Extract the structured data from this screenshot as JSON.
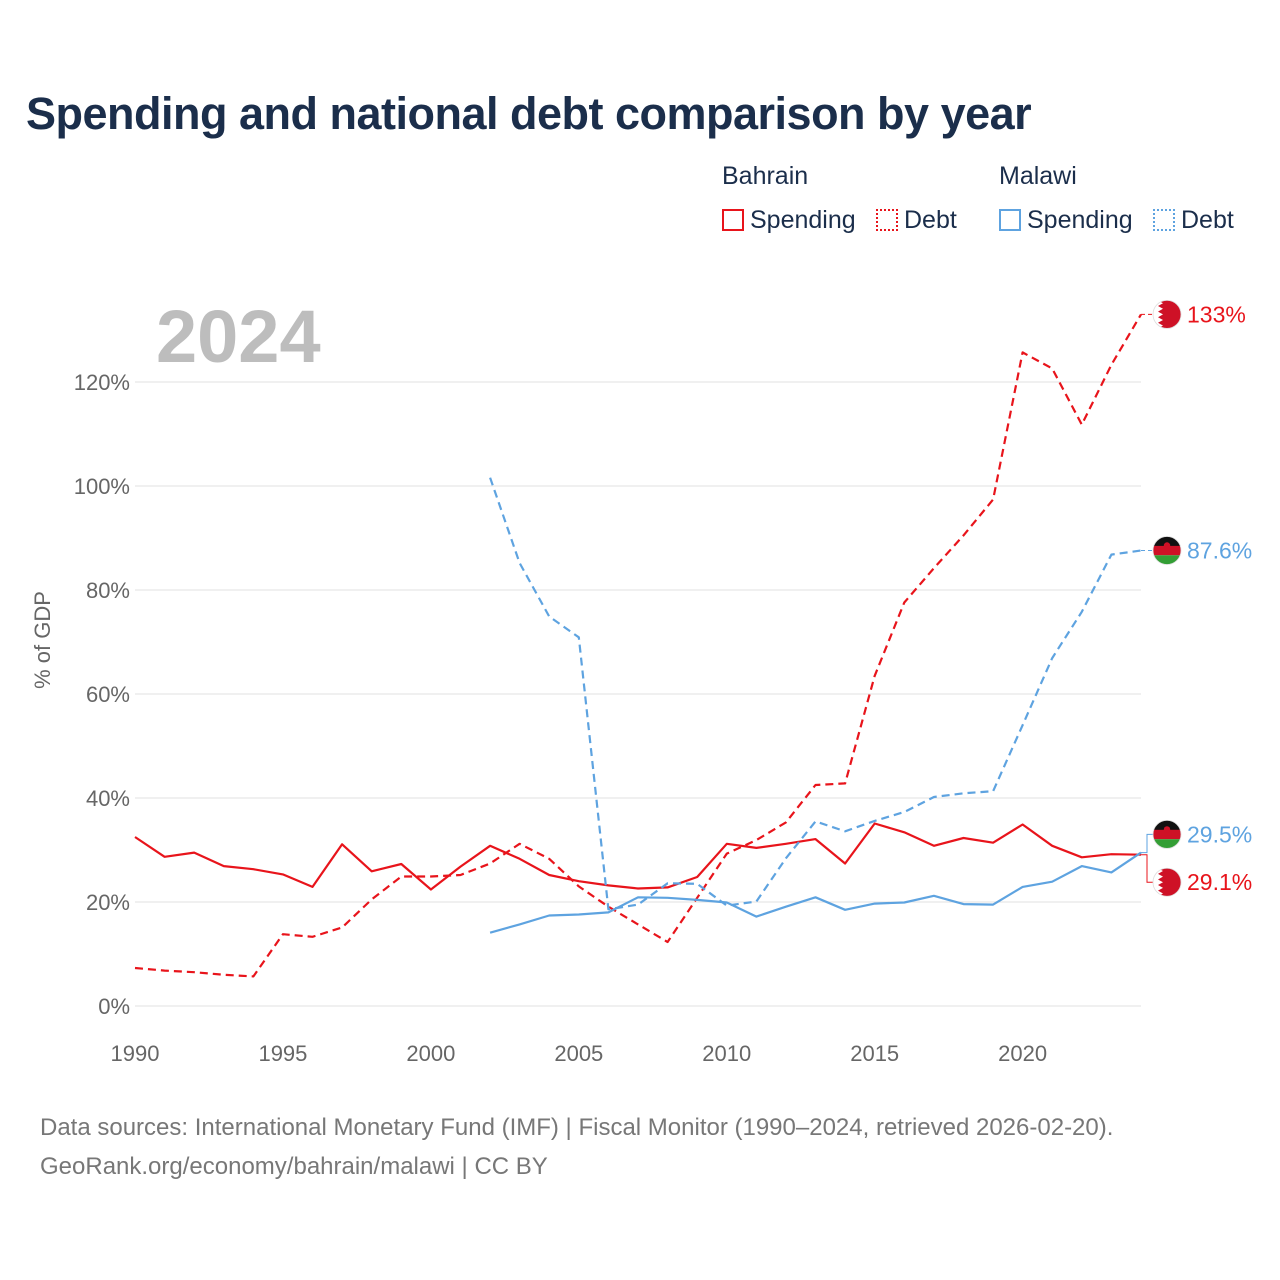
{
  "title": "Spending and national debt comparison by year",
  "legend": {
    "bahrain": {
      "label": "Bahrain",
      "spending": "Spending",
      "debt": "Debt",
      "color": "#e8141b"
    },
    "malawi": {
      "label": "Malawi",
      "spending": "Spending",
      "debt": "Debt",
      "color": "#5ea3e0"
    }
  },
  "footer": {
    "line1": "Data sources: International Monetary Fund (IMF) | Fiscal Monitor (1990–2024, retrieved 2026-02-20).",
    "line2": "GeoRank.org/economy/bahrain/malawi | CC BY"
  },
  "chart_data": {
    "type": "line",
    "year_watermark": "2024",
    "ylabel": "% of GDP",
    "xlim": [
      1990,
      2024
    ],
    "ylim": [
      0,
      130
    ],
    "xticks": [
      {
        "value": 1990,
        "label": "1990"
      },
      {
        "value": 1995,
        "label": "1995"
      },
      {
        "value": 2000,
        "label": "2000"
      },
      {
        "value": 2005,
        "label": "2005"
      },
      {
        "value": 2010,
        "label": "2010"
      },
      {
        "value": 2015,
        "label": "2015"
      },
      {
        "value": 2020,
        "label": "2020"
      }
    ],
    "yticks": [
      {
        "value": 0,
        "label": "0%"
      },
      {
        "value": 20,
        "label": "20%"
      },
      {
        "value": 40,
        "label": "40%"
      },
      {
        "value": 60,
        "label": "60%"
      },
      {
        "value": 80,
        "label": "80%"
      },
      {
        "value": 100,
        "label": "100%"
      },
      {
        "value": 120,
        "label": "120%"
      }
    ],
    "series": [
      {
        "name": "Bahrain Spending",
        "country": "bahrain",
        "kind": "spending",
        "color": "#e8141b",
        "dashed": false,
        "start": 1990,
        "values": [
          32.5,
          28.7,
          29.5,
          26.9,
          26.3,
          25.3,
          22.9,
          31.1,
          25.9,
          27.3,
          22.4,
          26.8,
          30.8,
          28.3,
          25.2,
          24.0,
          23.2,
          22.6,
          22.8,
          24.8,
          31.2,
          30.4,
          31.2,
          32.1,
          27.4,
          35.1,
          33.4,
          30.8,
          32.3,
          31.4,
          34.9,
          30.8,
          28.6,
          29.2,
          29.1
        ],
        "end_label": "29.1%",
        "label_value": 23.8
      },
      {
        "name": "Bahrain Debt",
        "country": "bahrain",
        "kind": "debt",
        "color": "#e8141b",
        "dashed": true,
        "start": 1990,
        "values": [
          7.3,
          6.8,
          6.5,
          6.0,
          5.7,
          13.8,
          13.3,
          15.1,
          20.5,
          24.9,
          24.9,
          25.2,
          27.4,
          31.2,
          28.3,
          23.0,
          19.1,
          15.7,
          12.3,
          20.8,
          29.3,
          31.9,
          35.3,
          42.5,
          42.8,
          63.5,
          77.6,
          84.2,
          90.5,
          97.4,
          125.7,
          122.6,
          111.8,
          123.3,
          133.0
        ],
        "end_label": "133%",
        "label_value": 133.0
      },
      {
        "name": "Malawi Spending",
        "country": "malawi",
        "kind": "spending",
        "color": "#5ea3e0",
        "dashed": false,
        "start": 2002,
        "values": [
          14.1,
          15.7,
          17.4,
          17.6,
          18.0,
          20.9,
          20.8,
          20.4,
          19.9,
          17.2,
          19.1,
          20.9,
          18.5,
          19.7,
          19.9,
          21.2,
          19.6,
          19.5,
          22.9,
          23.9,
          26.9,
          25.7,
          29.5
        ],
        "end_label": "29.5%",
        "label_value": 33.0
      },
      {
        "name": "Malawi Debt",
        "country": "malawi",
        "kind": "debt",
        "color": "#5ea3e0",
        "dashed": true,
        "start": 2002,
        "values": [
          101.6,
          85.2,
          74.9,
          70.9,
          18.6,
          19.5,
          23.6,
          23.5,
          19.3,
          20.1,
          28.4,
          35.5,
          33.6,
          35.6,
          37.3,
          40.2,
          40.9,
          41.3,
          54.0,
          66.9,
          75.8,
          86.8,
          87.6
        ],
        "end_label": "87.6%",
        "label_value": 87.6
      }
    ]
  }
}
